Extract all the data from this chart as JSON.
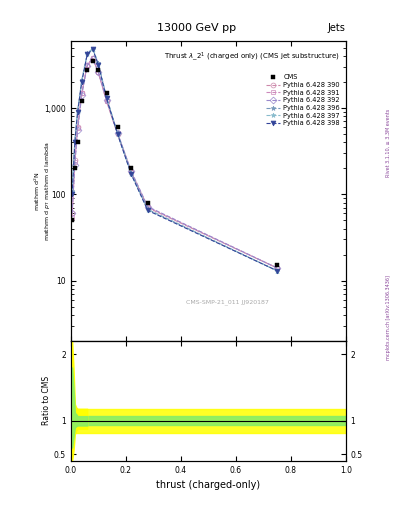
{
  "title_top": "13000 GeV pp",
  "title_right": "Jets",
  "right_label1": "Rivet 3.1.10, ≥ 3.3M events",
  "right_label2": "mcplots.cern.ch [arXiv:1306.3436]",
  "plot_title": "Thrust $\\lambda$_2$^1$ (charged only) (CMS jet substructure)",
  "xlabel": "thrust (charged-only)",
  "ylabel_ratio": "Ratio to CMS",
  "cms_annotation": "CMS-SMP-21_011 JJ920187",
  "legend_entries": [
    "CMS",
    "Pythia 6.428 390",
    "Pythia 6.428 391",
    "Pythia 6.428 392",
    "Pythia 6.428 396",
    "Pythia 6.428 397",
    "Pythia 6.428 398"
  ],
  "x_data": [
    0.005,
    0.015,
    0.025,
    0.04,
    0.06,
    0.08,
    0.1,
    0.13,
    0.17,
    0.22,
    0.28,
    0.75
  ],
  "cms_y": [
    50,
    200,
    400,
    1200,
    2800,
    3500,
    2800,
    1500,
    600,
    200,
    80,
    15
  ],
  "py390_y": [
    60,
    250,
    600,
    1500,
    3200,
    3800,
    2600,
    1200,
    500,
    180,
    70,
    14
  ],
  "py391_y": [
    55,
    240,
    590,
    1480,
    3150,
    3780,
    2620,
    1220,
    510,
    182,
    71,
    14
  ],
  "py392_y": [
    60,
    220,
    550,
    1400,
    3100,
    3700,
    2650,
    1250,
    520,
    185,
    72,
    14
  ],
  "py396_y": [
    110,
    420,
    920,
    2100,
    4300,
    4900,
    3300,
    1350,
    510,
    175,
    67,
    13
  ],
  "py397_y": [
    105,
    410,
    910,
    2050,
    4250,
    4850,
    3250,
    1330,
    505,
    172,
    66,
    13
  ],
  "py398_y": [
    100,
    400,
    900,
    2000,
    4200,
    4800,
    3200,
    1300,
    500,
    170,
    65,
    13
  ],
  "colors": {
    "390": "#cc88aa",
    "391": "#cc88bb",
    "392": "#9988cc",
    "396": "#7799bb",
    "397": "#88bbcc",
    "398": "#334499"
  },
  "markers": {
    "390": "o",
    "391": "s",
    "392": "D",
    "396": "*",
    "397": "*",
    "398": "v"
  },
  "ylim_main": [
    2,
    6000
  ],
  "ylim_ratio": [
    0.4,
    2.2
  ],
  "xlim": [
    0.0,
    1.0
  ],
  "bg_color": "#ffffff",
  "ratio_green_lo": 0.93,
  "ratio_green_hi": 1.07,
  "ratio_yellow_lo": 0.82,
  "ratio_yellow_hi": 1.18
}
